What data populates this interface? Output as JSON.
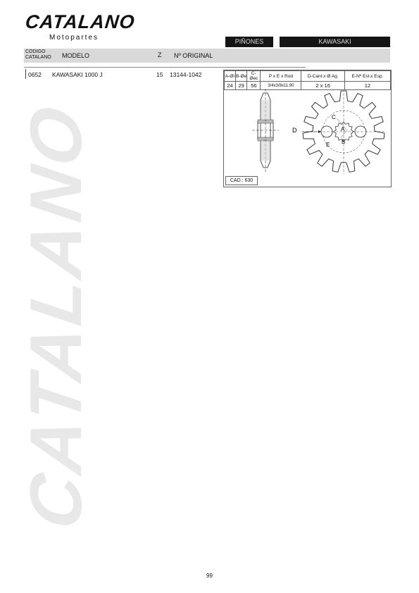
{
  "brand": {
    "name": "CATALANO",
    "subtitle": "Motopartes"
  },
  "tabs": {
    "category": "PIÑONES",
    "make": "KAWASAKI"
  },
  "columns": {
    "codigo_line1": "CODIGO",
    "codigo_line2": "CATALANO",
    "modelo": "MODELO",
    "z": "Z",
    "original": "Nº ORIGINAL"
  },
  "product": {
    "code": "0652",
    "model": "KAWASAKI 1000 J",
    "z": "15",
    "original": "13144-1042"
  },
  "spec": {
    "headers": [
      "A-ØI",
      "B-Øe",
      "C-Øec",
      "P x E x Rod",
      "D-Cant.x Ø Ag.",
      "E-Nº Est.x Esp."
    ],
    "values": [
      "24",
      "29",
      "56",
      "3/4x3/8x11.90",
      "2 x 16",
      "12"
    ],
    "cad": "CAD.: 630"
  },
  "diagram": {
    "labels": {
      "a": "A",
      "b": "B",
      "c": "C",
      "d": "D",
      "e": "E"
    }
  },
  "watermark": "CATALANO",
  "page_number": "99"
}
